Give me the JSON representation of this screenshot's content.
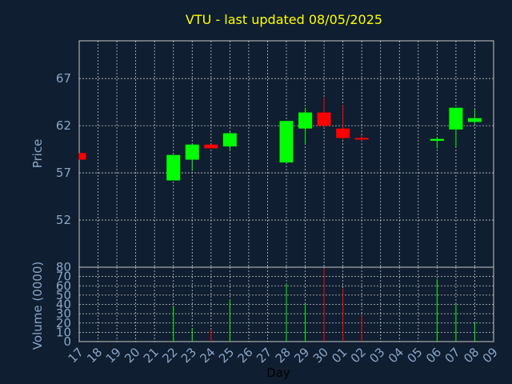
{
  "chart_data": {
    "type": "candlestick",
    "title": "VTU - last updated 08/05/2025",
    "xlabel": "Day",
    "price_ylabel": "Price",
    "volume_ylabel": "Volume (0000)",
    "x_tick_labels": [
      "17",
      "18",
      "19",
      "20",
      "21",
      "22",
      "23",
      "24",
      "25",
      "26",
      "27",
      "28",
      "29",
      "30",
      "01",
      "02",
      "03",
      "04",
      "05",
      "06",
      "07",
      "08",
      "09"
    ],
    "price_ylim": [
      47,
      71
    ],
    "price_ticks": [
      52,
      57,
      62,
      67
    ],
    "volume_ylim": [
      0,
      80
    ],
    "volume_ticks": [
      0,
      10,
      20,
      30,
      40,
      50,
      60,
      70,
      80
    ],
    "grid": true,
    "colors": {
      "up": "#00ff00",
      "down": "#ff0000",
      "background": "#0f1e30",
      "title": "#ffff00",
      "axis_text": "#8aa6c8"
    },
    "candles": [
      {
        "day": "17",
        "open": 59.1,
        "close": 58.4,
        "high": 59.1,
        "low": 58.4,
        "volume": 0
      },
      {
        "day": "22",
        "open": 56.2,
        "close": 58.9,
        "high": 58.9,
        "low": 56.2,
        "volume": 38
      },
      {
        "day": "23",
        "open": 58.4,
        "close": 60.0,
        "high": 60.0,
        "low": 57.2,
        "volume": 14
      },
      {
        "day": "24",
        "open": 60.0,
        "close": 59.6,
        "high": 60.0,
        "low": 59.6,
        "volume": 13
      },
      {
        "day": "25",
        "open": 59.8,
        "close": 61.2,
        "high": 61.4,
        "low": 59.4,
        "volume": 45
      },
      {
        "day": "28",
        "open": 58.1,
        "close": 62.5,
        "high": 62.5,
        "low": 58.1,
        "volume": 62
      },
      {
        "day": "29",
        "open": 61.7,
        "close": 63.4,
        "high": 63.9,
        "low": 60.1,
        "volume": 40
      },
      {
        "day": "30",
        "open": 63.4,
        "close": 62.0,
        "high": 65.0,
        "low": 61.8,
        "volume": 79
      },
      {
        "day": "01",
        "open": 61.7,
        "close": 60.7,
        "high": 64.2,
        "low": 60.5,
        "volume": 57
      },
      {
        "day": "02",
        "open": 60.7,
        "close": 60.6,
        "high": 61.0,
        "low": 60.4,
        "volume": 28
      },
      {
        "day": "06",
        "open": 60.4,
        "close": 60.6,
        "high": 60.8,
        "low": 59.6,
        "volume": 67
      },
      {
        "day": "07",
        "open": 61.6,
        "close": 63.9,
        "high": 63.9,
        "low": 59.8,
        "volume": 40
      },
      {
        "day": "08",
        "open": 62.4,
        "close": 62.8,
        "high": 63.7,
        "low": 62.2,
        "volume": 21
      }
    ]
  }
}
